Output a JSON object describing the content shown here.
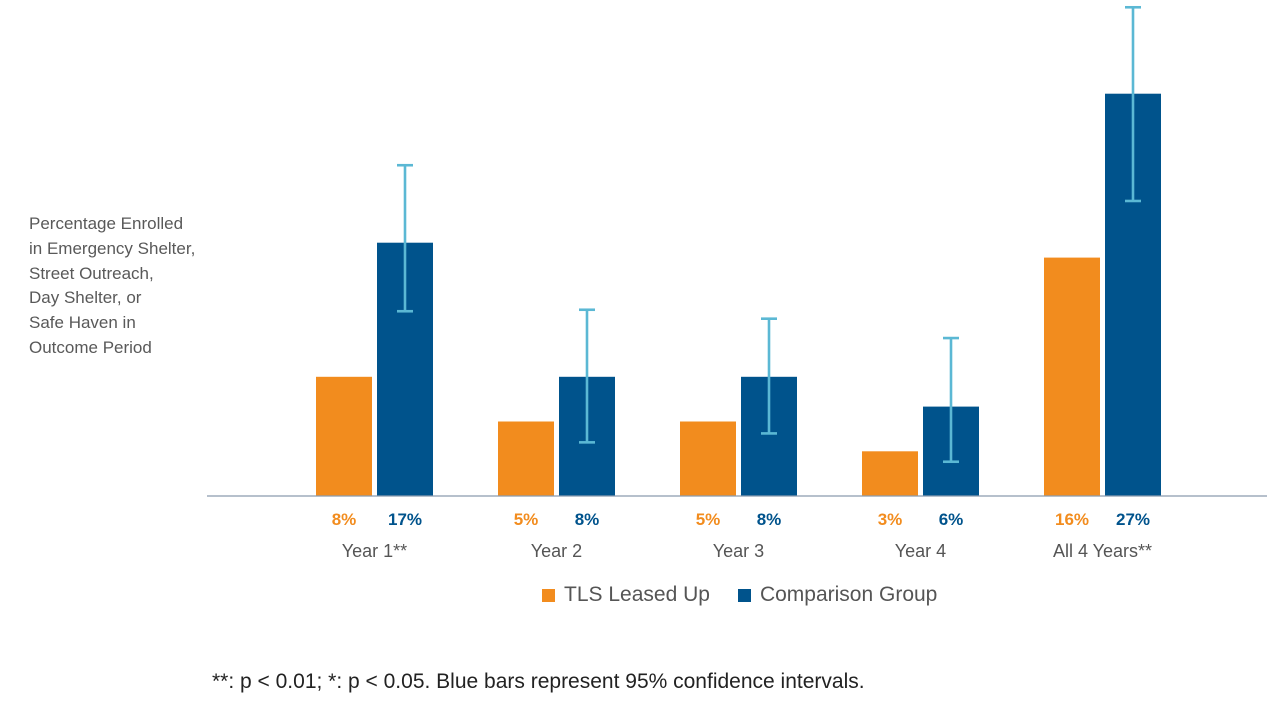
{
  "chart_data": {
    "type": "bar",
    "ylabel_lines": [
      "Percentage Enrolled",
      "in Emergency Shelter,",
      "Street Outreach,",
      "Day Shelter, or",
      "Safe Haven in",
      "Outcome Period"
    ],
    "categories": [
      "Year 1**",
      "Year 2",
      "Year 3",
      "Year 4",
      "All 4 Years**"
    ],
    "series": [
      {
        "name": "TLS Leased Up",
        "color": "#F28C1E",
        "values": [
          8,
          5,
          5,
          3,
          16
        ],
        "labels": [
          "8%",
          "5%",
          "5%",
          "3%",
          "16%"
        ]
      },
      {
        "name": "Comparison Group",
        "color": "#00538C",
        "values": [
          17,
          8,
          8,
          6,
          27
        ],
        "labels": [
          "17%",
          "8%",
          "8%",
          "6%",
          "27%"
        ],
        "error_bars": [
          [
            12.4,
            22.2
          ],
          [
            3.6,
            12.5
          ],
          [
            4.2,
            11.9
          ],
          [
            2.3,
            10.6
          ],
          [
            19.8,
            32.8
          ]
        ],
        "error_color": "#5BB8D4"
      }
    ],
    "ylim": [
      0,
      34
    ],
    "grid": false,
    "legend_position": "bottom"
  },
  "footnote": "**: p < 0.01; *: p < 0.05. Blue bars represent 95% confidence intervals."
}
